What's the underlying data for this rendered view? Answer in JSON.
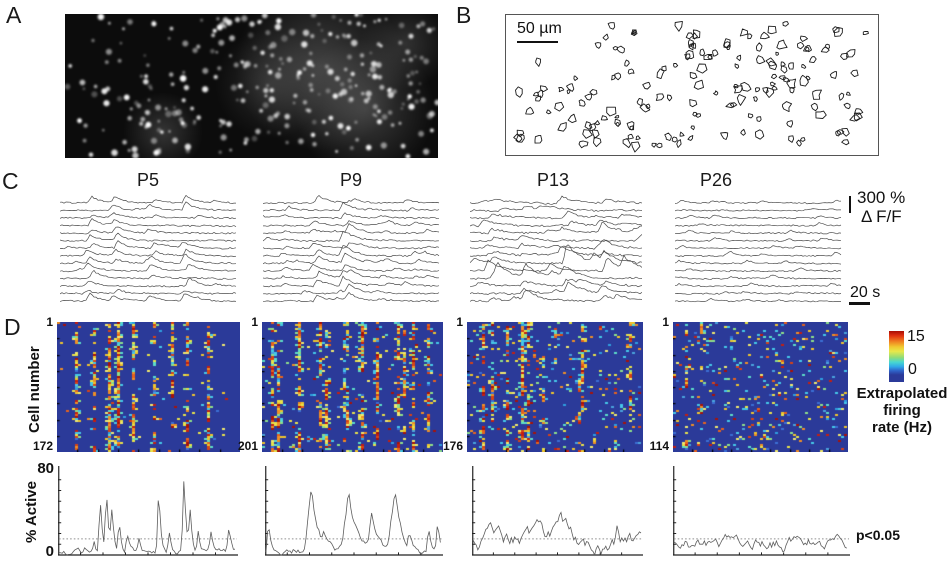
{
  "figure": {
    "panel_a": {
      "label": "A"
    },
    "panel_b": {
      "label": "B",
      "scale_bar_label": "50 µm"
    },
    "panel_c": {
      "label": "C",
      "ages": [
        "P5",
        "P9",
        "P13",
        "P26"
      ],
      "amplitude_scale": "300 %",
      "amplitude_scale_unit": "Δ F/F",
      "time_scale": "20 s"
    },
    "panel_d": {
      "label": "D",
      "y_axis_label": "Cell number",
      "heatmaps": [
        {
          "first_cell": "1",
          "last_cell": "172"
        },
        {
          "first_cell": "1",
          "last_cell": "201"
        },
        {
          "first_cell": "1",
          "last_cell": "176"
        },
        {
          "first_cell": "1",
          "last_cell": "114"
        }
      ],
      "colorbar": {
        "max": "15",
        "min": "0",
        "label_line1": "Extrapolated",
        "label_line2": "firing",
        "label_line3": "rate (Hz)"
      },
      "activity": {
        "y_axis_label": "% Active",
        "y_max": "80",
        "y_min": "0",
        "threshold_label": "p<0.05"
      }
    }
  },
  "colors": {
    "heatmap_background": "#2b3a99",
    "colorbar_top": "#a80d05",
    "colorbar_bottom": "#2b3a99"
  },
  "chart_data": [
    {
      "type": "heatmap",
      "panel": "D",
      "column": "P5",
      "ylabel": "Cell number",
      "row_first": 1,
      "row_last": 172,
      "value_label": "Extrapolated firing rate (Hz)",
      "value_range": [
        0,
        15
      ],
      "colormap": "jet",
      "pattern": "dense synchronized vertical bands of high firing"
    },
    {
      "type": "heatmap",
      "panel": "D",
      "column": "P9",
      "ylabel": "Cell number",
      "row_first": 1,
      "row_last": 201,
      "value_label": "Extrapolated firing rate (Hz)",
      "value_range": [
        0,
        15
      ],
      "colormap": "jet",
      "pattern": "synchronized vertical bands with more scattered activity"
    },
    {
      "type": "heatmap",
      "panel": "D",
      "column": "P13",
      "ylabel": "Cell number",
      "row_first": 1,
      "row_last": 176,
      "value_label": "Extrapolated firing rate (Hz)",
      "value_range": [
        0,
        15
      ],
      "colormap": "jet",
      "pattern": "weak partial bands, many scattered speckles"
    },
    {
      "type": "heatmap",
      "panel": "D",
      "column": "P26",
      "ylabel": "Cell number",
      "row_first": 1,
      "row_last": 114,
      "value_label": "Extrapolated firing rate (Hz)",
      "value_range": [
        0,
        15
      ],
      "colormap": "jet",
      "pattern": "sparse desynchronized speckled activity, no bands"
    },
    {
      "type": "line",
      "panel": "D bottom row",
      "ylabel": "% Active",
      "ylim": [
        0,
        80
      ],
      "threshold_label": "p<0.05",
      "threshold_value_estimate": 15,
      "series": [
        {
          "name": "P5",
          "pattern": "sparse narrow synchronous peaks up to ~70%"
        },
        {
          "name": "P9",
          "pattern": "three broad peaks reaching ~55%"
        },
        {
          "name": "P13",
          "pattern": "frequent medium fluctuations ~10-35% crossing threshold"
        },
        {
          "name": "P26",
          "pattern": "low fluctuations ~5-25% hovering near threshold"
        }
      ]
    }
  ]
}
